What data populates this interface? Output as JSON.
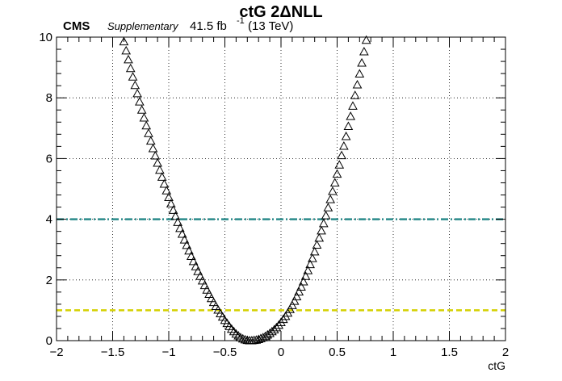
{
  "chart_data": {
    "type": "scatter",
    "title": "ctG 2ΔNLL",
    "experiment": "CMS",
    "status": "Supplementary",
    "lumi_text": "41.5 fb",
    "lumi_exp": "-1",
    "energy_text": "(13 TeV)",
    "xlabel": "ctG",
    "ylabel": "",
    "xlim": [
      -2,
      2
    ],
    "ylim": [
      0,
      10
    ],
    "grid": true,
    "x_ticks": [
      -2,
      -1.5,
      -1,
      -0.5,
      0,
      0.5,
      1,
      1.5,
      2
    ],
    "x_tick_labels": [
      "−2",
      "−1.5",
      "−1",
      "−0.5",
      "0",
      "0.5",
      "1",
      "1.5",
      "2"
    ],
    "y_ticks": [
      0,
      2,
      4,
      6,
      8,
      10
    ],
    "y_tick_labels": [
      "0",
      "2",
      "4",
      "6",
      "8",
      "10"
    ],
    "reference_lines": [
      {
        "y": 4,
        "color": "#2a8b8b",
        "style": "dash-dot"
      },
      {
        "y": 1,
        "color": "#d4d000",
        "style": "dashed"
      }
    ],
    "series": [
      {
        "marker": "open-triangle",
        "color": "#000000",
        "points": [
          [
            -1.4,
            9.85
          ],
          [
            -1.38,
            9.55
          ],
          [
            -1.36,
            9.26
          ],
          [
            -1.34,
            8.97
          ],
          [
            -1.32,
            8.69
          ],
          [
            -1.3,
            8.41
          ],
          [
            -1.28,
            8.14
          ],
          [
            -1.26,
            7.87
          ],
          [
            -1.24,
            7.6
          ],
          [
            -1.22,
            7.34
          ],
          [
            -1.2,
            7.08
          ],
          [
            -1.18,
            6.83
          ],
          [
            -1.16,
            6.58
          ],
          [
            -1.14,
            6.33
          ],
          [
            -1.12,
            6.09
          ],
          [
            -1.1,
            5.85
          ],
          [
            -1.08,
            5.62
          ],
          [
            -1.06,
            5.39
          ],
          [
            -1.04,
            5.16
          ],
          [
            -1.02,
            4.94
          ],
          [
            -1.0,
            4.72
          ],
          [
            -0.98,
            4.51
          ],
          [
            -0.96,
            4.3
          ],
          [
            -0.94,
            4.1
          ],
          [
            -0.92,
            3.9
          ],
          [
            -0.9,
            3.7
          ],
          [
            -0.88,
            3.51
          ],
          [
            -0.86,
            3.32
          ],
          [
            -0.84,
            3.14
          ],
          [
            -0.82,
            2.96
          ],
          [
            -0.8,
            2.78
          ],
          [
            -0.78,
            2.61
          ],
          [
            -0.76,
            2.44
          ],
          [
            -0.74,
            2.28
          ],
          [
            -0.72,
            2.12
          ],
          [
            -0.7,
            1.97
          ],
          [
            -0.68,
            1.82
          ],
          [
            -0.66,
            1.67
          ],
          [
            -0.64,
            1.53
          ],
          [
            -0.62,
            1.39
          ],
          [
            -0.6,
            1.26
          ],
          [
            -0.58,
            1.13
          ],
          [
            -0.56,
            1.01
          ],
          [
            -0.54,
            0.89
          ],
          [
            -0.52,
            0.78
          ],
          [
            -0.5,
            0.67
          ],
          [
            -0.48,
            0.57
          ],
          [
            -0.46,
            0.47
          ],
          [
            -0.44,
            0.38
          ],
          [
            -0.42,
            0.3
          ],
          [
            -0.4,
            0.22
          ],
          [
            -0.38,
            0.16
          ],
          [
            -0.36,
            0.1
          ],
          [
            -0.34,
            0.06
          ],
          [
            -0.32,
            0.03
          ],
          [
            -0.3,
            0.01
          ],
          [
            -0.28,
            0.0
          ],
          [
            -0.26,
            0.0
          ],
          [
            -0.24,
            0.01
          ],
          [
            -0.22,
            0.02
          ],
          [
            -0.2,
            0.04
          ],
          [
            -0.18,
            0.07
          ],
          [
            -0.16,
            0.1
          ],
          [
            -0.14,
            0.14
          ],
          [
            -0.12,
            0.19
          ],
          [
            -0.1,
            0.24
          ],
          [
            -0.08,
            0.3
          ],
          [
            -0.06,
            0.36
          ],
          [
            -0.04,
            0.43
          ],
          [
            -0.02,
            0.51
          ],
          [
            0.0,
            0.6
          ],
          [
            0.02,
            0.7
          ],
          [
            0.04,
            0.8
          ],
          [
            0.06,
            0.91
          ],
          [
            0.08,
            1.03
          ],
          [
            0.1,
            1.16
          ],
          [
            0.12,
            1.3
          ],
          [
            0.14,
            1.45
          ],
          [
            0.16,
            1.61
          ],
          [
            0.18,
            1.77
          ],
          [
            0.2,
            1.94
          ],
          [
            0.22,
            2.12
          ],
          [
            0.24,
            2.31
          ],
          [
            0.26,
            2.51
          ],
          [
            0.28,
            2.71
          ],
          [
            0.3,
            2.93
          ],
          [
            0.32,
            3.15
          ],
          [
            0.34,
            3.38
          ],
          [
            0.36,
            3.62
          ],
          [
            0.38,
            3.86
          ],
          [
            0.4,
            4.12
          ],
          [
            0.42,
            4.38
          ],
          [
            0.44,
            4.65
          ],
          [
            0.46,
            4.92
          ],
          [
            0.48,
            5.2
          ],
          [
            0.5,
            5.49
          ],
          [
            0.52,
            5.79
          ],
          [
            0.54,
            6.1
          ],
          [
            0.56,
            6.41
          ],
          [
            0.58,
            6.73
          ],
          [
            0.6,
            7.06
          ],
          [
            0.62,
            7.39
          ],
          [
            0.64,
            7.73
          ],
          [
            0.66,
            8.08
          ],
          [
            0.68,
            8.43
          ],
          [
            0.7,
            8.79
          ],
          [
            0.72,
            9.15
          ],
          [
            0.74,
            9.52
          ],
          [
            0.76,
            9.9
          ]
        ]
      }
    ]
  }
}
